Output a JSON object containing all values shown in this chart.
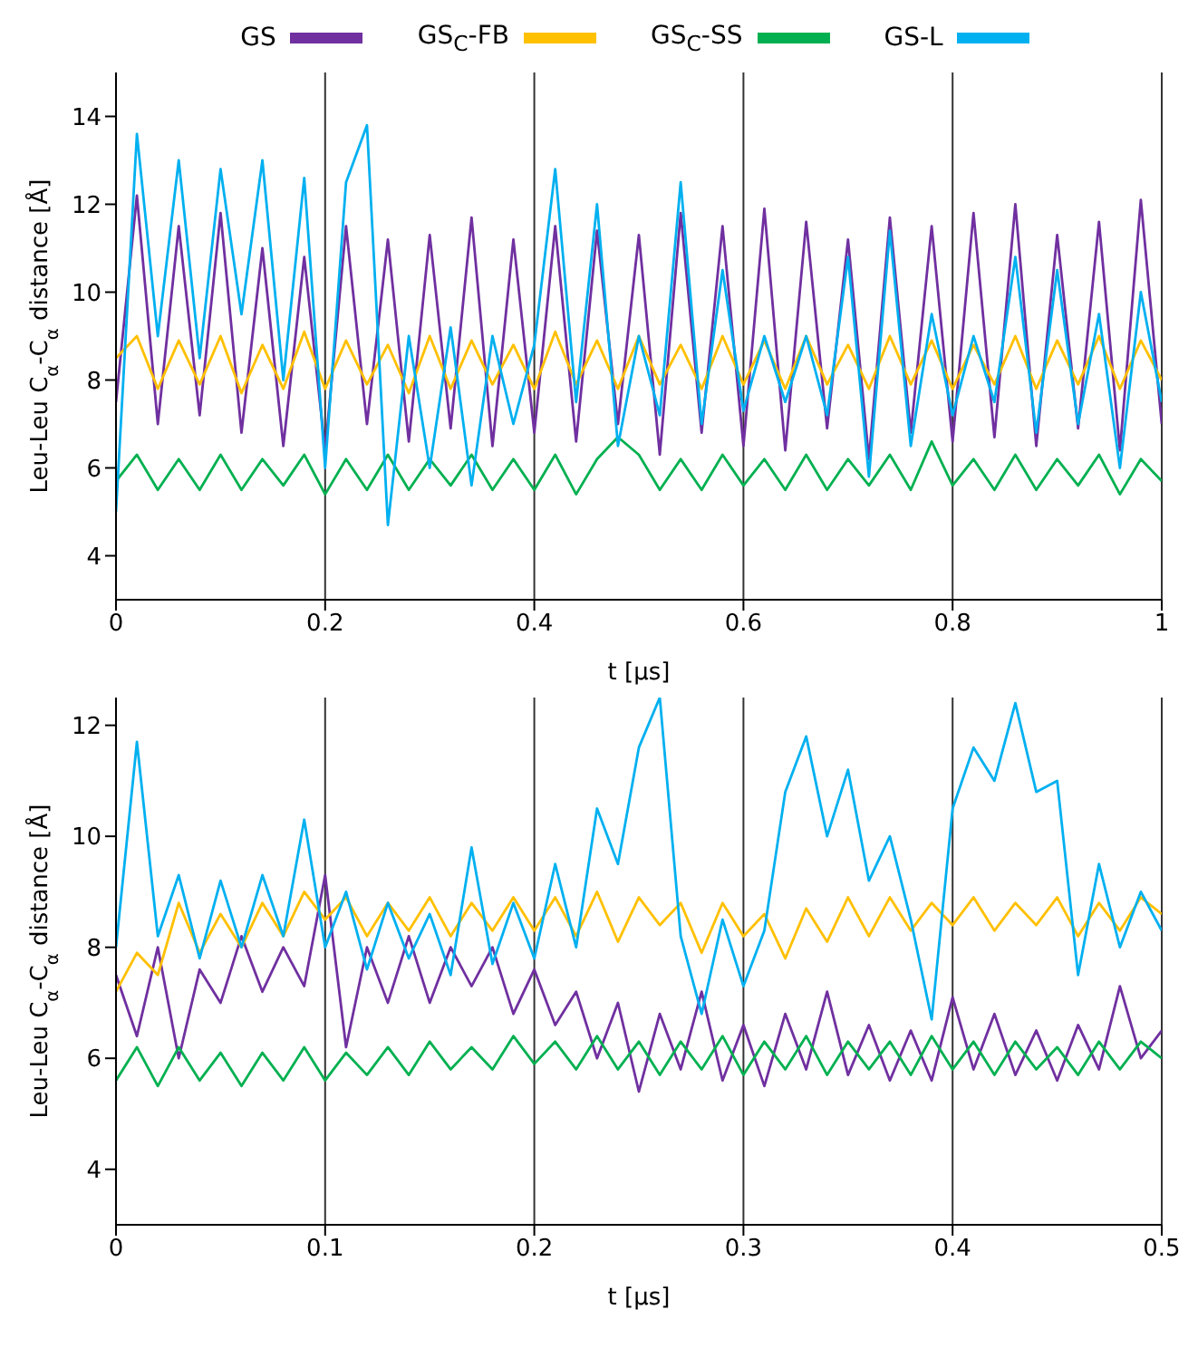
{
  "chart_data": [
    {
      "type": "line",
      "xlabel": "t [μs]",
      "ylabel": "Leu-Leu C$_{α}$-C$_{α}$ distance [Å]",
      "legend": "top",
      "grid": "x",
      "marker": "none",
      "line_style": "solid",
      "xlim": [
        0,
        1
      ],
      "xticks": [
        0,
        0.2,
        0.4,
        0.6,
        0.8,
        1
      ],
      "ylim": [
        3,
        15
      ],
      "yticks": [
        4,
        6,
        8,
        10,
        12,
        14
      ],
      "x": [
        0,
        0.02,
        0.04,
        0.06,
        0.08,
        0.1,
        0.12,
        0.14,
        0.16,
        0.18,
        0.2,
        0.22,
        0.24,
        0.26,
        0.28,
        0.3,
        0.32,
        0.34,
        0.36,
        0.38,
        0.4,
        0.42,
        0.44,
        0.46,
        0.48,
        0.5,
        0.52,
        0.54,
        0.56,
        0.58,
        0.6,
        0.62,
        0.64,
        0.66,
        0.68,
        0.7,
        0.72,
        0.74,
        0.76,
        0.78,
        0.8,
        0.82,
        0.84,
        0.86,
        0.88,
        0.9,
        0.92,
        0.94,
        0.96,
        0.98,
        1
      ],
      "series": [
        {
          "name": "GS",
          "color": "#7030a0",
          "values": [
            7.5,
            12.2,
            7.0,
            11.5,
            7.2,
            11.8,
            6.8,
            11.0,
            6.5,
            10.8,
            6.4,
            11.5,
            7.0,
            11.2,
            6.6,
            11.3,
            6.9,
            11.7,
            6.5,
            11.2,
            6.8,
            11.5,
            6.6,
            11.4,
            7.0,
            11.3,
            6.3,
            11.8,
            6.8,
            11.5,
            6.5,
            11.9,
            6.4,
            11.6,
            6.9,
            11.2,
            6.2,
            11.7,
            6.8,
            11.5,
            6.6,
            11.8,
            6.7,
            12.0,
            6.5,
            11.3,
            6.9,
            11.6,
            6.4,
            12.1,
            7.0
          ]
        },
        {
          "name": "GS$_{C}$-FB",
          "color": "#ffc000",
          "values": [
            8.5,
            9.0,
            7.8,
            8.9,
            7.9,
            9.0,
            7.7,
            8.8,
            7.8,
            9.1,
            7.8,
            8.9,
            7.9,
            8.8,
            7.7,
            9.0,
            7.8,
            8.9,
            7.9,
            8.8,
            7.8,
            9.1,
            7.9,
            8.9,
            7.8,
            9.0,
            7.9,
            8.8,
            7.8,
            9.0,
            7.9,
            8.9,
            7.8,
            9.0,
            7.9,
            8.8,
            7.8,
            9.0,
            7.9,
            8.9,
            7.8,
            8.8,
            7.9,
            9.0,
            7.8,
            8.9,
            7.9,
            9.0,
            7.8,
            8.9,
            8.0
          ]
        },
        {
          "name": "GS$_{C}$-SS",
          "color": "#00b050",
          "values": [
            5.7,
            6.3,
            5.5,
            6.2,
            5.5,
            6.3,
            5.5,
            6.2,
            5.6,
            6.3,
            5.4,
            6.2,
            5.5,
            6.3,
            5.5,
            6.2,
            5.6,
            6.3,
            5.5,
            6.2,
            5.5,
            6.3,
            5.4,
            6.2,
            6.7,
            6.3,
            5.5,
            6.2,
            5.5,
            6.3,
            5.6,
            6.2,
            5.5,
            6.3,
            5.5,
            6.2,
            5.6,
            6.3,
            5.5,
            6.6,
            5.6,
            6.2,
            5.5,
            6.3,
            5.5,
            6.2,
            5.6,
            6.3,
            5.4,
            6.2,
            5.7
          ]
        },
        {
          "name": "GS-L",
          "color": "#00b0f0",
          "values": [
            5.0,
            13.6,
            9.0,
            13.0,
            8.5,
            12.8,
            9.5,
            13.0,
            8.0,
            12.6,
            6.0,
            12.5,
            13.8,
            4.7,
            9.0,
            6.0,
            9.2,
            5.6,
            9.0,
            7.0,
            8.8,
            12.8,
            7.5,
            12.0,
            6.5,
            9.0,
            7.2,
            12.5,
            7.0,
            10.5,
            7.3,
            9.0,
            7.5,
            9.0,
            7.2,
            10.8,
            5.8,
            11.4,
            6.5,
            9.5,
            7.2,
            9.0,
            7.5,
            10.8,
            6.8,
            10.5,
            7.0,
            9.5,
            6.0,
            10.0,
            7.5
          ]
        }
      ]
    },
    {
      "type": "line",
      "xlabel": "t [μs]",
      "ylabel": "Leu-Leu C$_{α}$-C$_{α}$ distance [Å]",
      "legend": false,
      "grid": "x",
      "marker": "none",
      "line_style": "solid",
      "xlim": [
        0,
        0.5
      ],
      "xticks": [
        0,
        0.1,
        0.2,
        0.3,
        0.4,
        0.5
      ],
      "ylim": [
        3,
        12.5
      ],
      "yticks": [
        4,
        6,
        8,
        10,
        12
      ],
      "x": [
        0,
        0.01,
        0.02,
        0.03,
        0.04,
        0.05,
        0.06,
        0.07,
        0.08,
        0.09,
        0.1,
        0.11,
        0.12,
        0.13,
        0.14,
        0.15,
        0.16,
        0.17,
        0.18,
        0.19,
        0.2,
        0.21,
        0.22,
        0.23,
        0.24,
        0.25,
        0.26,
        0.27,
        0.28,
        0.29,
        0.3,
        0.31,
        0.32,
        0.33,
        0.34,
        0.35,
        0.36,
        0.37,
        0.38,
        0.39,
        0.4,
        0.41,
        0.42,
        0.43,
        0.44,
        0.45,
        0.46,
        0.47,
        0.48,
        0.49,
        0.5
      ],
      "series": [
        {
          "color": "#7030a0",
          "values": [
            7.5,
            6.4,
            8.0,
            6.0,
            7.6,
            7.0,
            8.2,
            7.2,
            8.0,
            7.3,
            9.3,
            6.2,
            8.0,
            7.0,
            8.2,
            7.0,
            8.0,
            7.3,
            8.0,
            6.8,
            7.6,
            6.6,
            7.2,
            6.0,
            7.0,
            5.4,
            6.8,
            5.8,
            7.2,
            5.6,
            6.6,
            5.5,
            6.8,
            5.8,
            7.2,
            5.7,
            6.6,
            5.6,
            6.5,
            5.6,
            7.1,
            5.8,
            6.8,
            5.7,
            6.5,
            5.6,
            6.6,
            5.8,
            7.3,
            6.0,
            6.5
          ]
        },
        {
          "color": "#ffc000",
          "values": [
            7.2,
            7.9,
            7.5,
            8.8,
            7.9,
            8.6,
            8.0,
            8.8,
            8.2,
            9.0,
            8.5,
            8.9,
            8.2,
            8.8,
            8.3,
            8.9,
            8.2,
            8.8,
            8.3,
            8.9,
            8.3,
            8.9,
            8.2,
            9.0,
            8.1,
            8.9,
            8.4,
            8.8,
            7.9,
            8.8,
            8.2,
            8.6,
            7.8,
            8.7,
            8.1,
            8.9,
            8.2,
            8.9,
            8.3,
            8.8,
            8.4,
            8.9,
            8.3,
            8.8,
            8.4,
            8.9,
            8.2,
            8.8,
            8.3,
            8.9,
            8.6
          ]
        },
        {
          "color": "#00b050",
          "values": [
            5.6,
            6.2,
            5.5,
            6.2,
            5.6,
            6.1,
            5.5,
            6.1,
            5.6,
            6.2,
            5.6,
            6.1,
            5.7,
            6.2,
            5.7,
            6.3,
            5.8,
            6.2,
            5.8,
            6.4,
            5.9,
            6.3,
            5.8,
            6.4,
            5.8,
            6.3,
            5.7,
            6.3,
            5.8,
            6.4,
            5.7,
            6.3,
            5.8,
            6.4,
            5.7,
            6.3,
            5.8,
            6.3,
            5.7,
            6.4,
            5.8,
            6.3,
            5.7,
            6.3,
            5.8,
            6.2,
            5.7,
            6.3,
            5.8,
            6.3,
            6.0
          ]
        },
        {
          "color": "#00b0f0",
          "values": [
            8.0,
            11.7,
            8.2,
            9.3,
            7.8,
            9.2,
            8.0,
            9.3,
            8.2,
            10.3,
            8.0,
            9.0,
            7.6,
            8.8,
            7.8,
            8.6,
            7.5,
            9.8,
            7.7,
            8.8,
            7.8,
            9.5,
            8.0,
            10.5,
            9.5,
            11.6,
            12.5,
            8.2,
            6.8,
            8.5,
            7.3,
            8.3,
            10.8,
            11.8,
            10.0,
            11.2,
            9.2,
            10.0,
            8.5,
            6.7,
            10.5,
            11.6,
            11.0,
            12.4,
            10.8,
            11.0,
            7.5,
            9.5,
            8.0,
            9.0,
            8.3
          ]
        }
      ]
    }
  ]
}
